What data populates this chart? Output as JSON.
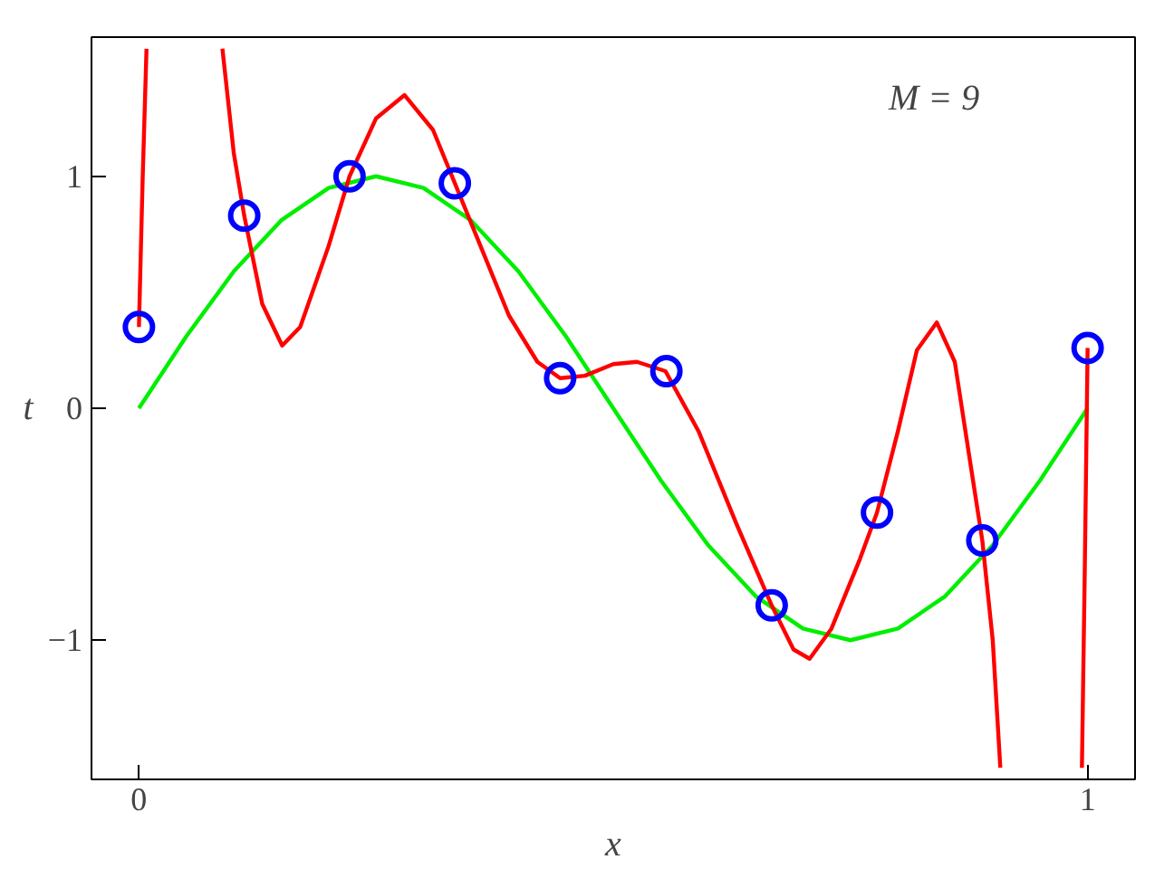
{
  "chart_data": {
    "type": "line",
    "xlabel": "x",
    "ylabel": "t",
    "annotations": [
      "M = 9"
    ],
    "xlim": [
      -0.05,
      1.05
    ],
    "ylim": [
      -1.6,
      1.6
    ],
    "xticks": [
      0,
      1
    ],
    "yticks": [
      -1,
      0,
      1
    ],
    "grid": false,
    "series": [
      {
        "color": "#00ee00",
        "marker": "none",
        "x": [
          0,
          0.05,
          0.1,
          0.15,
          0.2,
          0.25,
          0.3,
          0.35,
          0.4,
          0.45,
          0.5,
          0.55,
          0.6,
          0.65,
          0.7,
          0.75,
          0.8,
          0.85,
          0.9,
          0.95,
          1
        ],
        "values": [
          0,
          0.31,
          0.59,
          0.81,
          0.95,
          1.0,
          0.95,
          0.81,
          0.59,
          0.31,
          0,
          -0.31,
          -0.59,
          -0.81,
          -0.95,
          -1.0,
          -0.95,
          -0.81,
          -0.59,
          -0.31,
          0
        ]
      },
      {
        "color": "#ff0000",
        "marker": "none",
        "x": [
          0,
          0.004,
          0.008,
          0.05,
          0.088,
          0.1,
          0.111,
          0.13,
          0.151,
          0.17,
          0.2,
          0.222,
          0.25,
          0.28,
          0.31,
          0.333,
          0.36,
          0.39,
          0.42,
          0.444,
          0.47,
          0.5,
          0.525,
          0.555,
          0.59,
          0.63,
          0.667,
          0.69,
          0.707,
          0.73,
          0.76,
          0.778,
          0.8,
          0.82,
          0.841,
          0.86,
          0.875,
          0.889,
          0.9,
          0.908,
          0.95,
          0.994,
          0.997,
          1
        ],
        "values": [
          0.35,
          1.0,
          1.55,
          null,
          1.55,
          1.1,
          0.83,
          0.45,
          0.27,
          0.35,
          0.7,
          1.0,
          1.25,
          1.35,
          1.2,
          0.97,
          0.7,
          0.4,
          0.2,
          0.13,
          0.14,
          0.19,
          0.2,
          0.16,
          -0.1,
          -0.5,
          -0.85,
          -1.04,
          -1.08,
          -0.95,
          -0.65,
          -0.45,
          -0.1,
          0.25,
          0.37,
          0.2,
          -0.2,
          -0.57,
          -1.0,
          -1.55,
          null,
          -1.55,
          -0.7,
          0.26
        ]
      },
      {
        "type": "scatter",
        "color": "#0000ff",
        "marker": "circle",
        "x": [
          0,
          0.111,
          0.222,
          0.333,
          0.444,
          0.556,
          0.667,
          0.778,
          0.889,
          1
        ],
        "values": [
          0.35,
          0.83,
          1.0,
          0.97,
          0.13,
          0.16,
          -0.85,
          -0.45,
          -0.57,
          0.26
        ]
      }
    ]
  }
}
